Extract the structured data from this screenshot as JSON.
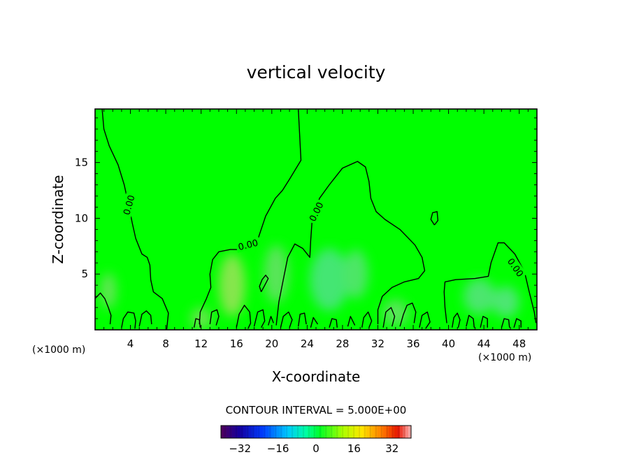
{
  "chart_data": {
    "type": "heatmap",
    "title": "vertical velocity",
    "xlabel": "X-coordinate",
    "ylabel": "Z-coordinate",
    "x_unit_left": "(×1000 m)",
    "x_unit_right": "(×1000 m)",
    "xlim": [
      0,
      50
    ],
    "ylim": [
      0,
      19.8
    ],
    "x_ticks": [
      4,
      8,
      12,
      16,
      20,
      24,
      28,
      32,
      36,
      40,
      44,
      48
    ],
    "y_ticks": [
      5,
      10,
      15
    ],
    "contour_interval_label": "CONTOUR INTERVAL = 5.000E+00",
    "contour_label": "0.00",
    "colorbar": {
      "range": [
        -40,
        40
      ],
      "tick_values": [
        -32,
        -16,
        0,
        16,
        32
      ],
      "tick_labels": [
        "−32",
        "−16",
        "0",
        "16",
        "32"
      ]
    },
    "background_color": "#00ff00",
    "zero_contours": [
      [
        [
          0.8,
          19.8
        ],
        [
          1.0,
          18.0
        ],
        [
          1.6,
          16.5
        ],
        [
          2.6,
          14.8
        ],
        [
          3.3,
          13.0
        ],
        [
          3.8,
          11.2
        ],
        [
          4.2,
          9.6
        ],
        [
          4.6,
          8.2
        ],
        [
          5.3,
          6.8
        ],
        [
          5.9,
          6.5
        ],
        [
          6.2,
          5.8
        ],
        [
          6.3,
          4.5
        ],
        [
          6.6,
          3.4
        ],
        [
          7.6,
          2.8
        ],
        [
          8.3,
          1.5
        ],
        [
          8.1,
          0.0
        ]
      ],
      [
        [
          23.0,
          19.8
        ],
        [
          23.3,
          15.2
        ],
        [
          22.0,
          13.5
        ],
        [
          21.2,
          12.5
        ],
        [
          20.4,
          11.8
        ],
        [
          19.3,
          10.2
        ],
        [
          18.5,
          8.3
        ],
        [
          16.8,
          7.2
        ],
        [
          15.3,
          7.2
        ],
        [
          14.0,
          7.0
        ],
        [
          13.3,
          6.3
        ],
        [
          13.0,
          5.0
        ],
        [
          13.1,
          3.8
        ],
        [
          12.6,
          2.8
        ],
        [
          11.9,
          1.6
        ],
        [
          11.8,
          0.5
        ]
      ],
      [
        [
          20.5,
          0.4
        ],
        [
          20.8,
          2.5
        ],
        [
          21.3,
          4.5
        ],
        [
          21.8,
          6.5
        ],
        [
          22.6,
          7.7
        ],
        [
          23.5,
          7.3
        ],
        [
          24.3,
          6.5
        ],
        [
          24.4,
          8.0
        ],
        [
          24.6,
          10.2
        ],
        [
          25.4,
          11.8
        ],
        [
          26.5,
          13.0
        ],
        [
          28.0,
          14.5
        ],
        [
          29.7,
          15.1
        ],
        [
          30.6,
          14.6
        ],
        [
          31.0,
          13.3
        ],
        [
          31.2,
          11.8
        ],
        [
          31.8,
          10.6
        ],
        [
          32.8,
          9.9
        ],
        [
          34.5,
          9.0
        ],
        [
          36.2,
          7.6
        ],
        [
          37.0,
          6.5
        ],
        [
          37.3,
          5.3
        ],
        [
          36.6,
          4.6
        ],
        [
          35.0,
          4.3
        ],
        [
          33.6,
          3.8
        ],
        [
          32.5,
          3.0
        ],
        [
          32.0,
          1.8
        ],
        [
          32.0,
          0.5
        ]
      ],
      [
        [
          39.8,
          0.6
        ],
        [
          39.6,
          2.0
        ],
        [
          39.5,
          3.4
        ],
        [
          39.6,
          4.3
        ],
        [
          40.8,
          4.5
        ],
        [
          43.0,
          4.6
        ],
        [
          44.5,
          4.8
        ],
        [
          44.8,
          6.0
        ],
        [
          45.6,
          7.8
        ],
        [
          46.3,
          7.8
        ],
        [
          47.5,
          6.8
        ],
        [
          48.6,
          5.2
        ],
        [
          49.1,
          3.5
        ],
        [
          49.7,
          1.6
        ],
        [
          49.9,
          0.6
        ]
      ],
      [
        [
          38.4,
          9.4
        ],
        [
          38.8,
          9.8
        ],
        [
          38.7,
          10.6
        ],
        [
          38.2,
          10.5
        ],
        [
          38.0,
          9.9
        ],
        [
          38.4,
          9.4
        ]
      ],
      [
        [
          18.8,
          3.4
        ],
        [
          19.2,
          4.0
        ],
        [
          19.6,
          4.6
        ],
        [
          19.3,
          4.9
        ],
        [
          18.9,
          4.5
        ],
        [
          18.6,
          3.9
        ],
        [
          18.8,
          3.4
        ]
      ],
      [
        [
          0.0,
          2.8
        ],
        [
          0.6,
          3.3
        ],
        [
          1.1,
          2.8
        ],
        [
          1.5,
          2.0
        ],
        [
          1.8,
          1.3
        ],
        [
          1.7,
          0.5
        ]
      ],
      [
        [
          3.0,
          0.2
        ],
        [
          3.2,
          1.0
        ],
        [
          3.7,
          1.6
        ],
        [
          4.4,
          1.5
        ],
        [
          4.6,
          0.8
        ],
        [
          4.5,
          0.1
        ]
      ],
      [
        [
          5.0,
          0.3
        ],
        [
          5.3,
          1.4
        ],
        [
          5.8,
          1.7
        ],
        [
          6.3,
          1.3
        ],
        [
          6.4,
          0.5
        ]
      ],
      [
        [
          11.2,
          0.2
        ],
        [
          11.4,
          1.0
        ],
        [
          11.8,
          0.9
        ],
        [
          11.9,
          0.2
        ]
      ],
      [
        [
          13.0,
          0.5
        ],
        [
          13.2,
          1.6
        ],
        [
          13.8,
          1.8
        ],
        [
          14.0,
          1.2
        ],
        [
          13.7,
          0.4
        ]
      ],
      [
        [
          16.0,
          0.2
        ],
        [
          16.3,
          1.4
        ],
        [
          16.9,
          2.2
        ],
        [
          17.5,
          1.6
        ],
        [
          17.6,
          0.6
        ],
        [
          17.3,
          0.1
        ]
      ],
      [
        [
          18.0,
          0.3
        ],
        [
          18.4,
          1.6
        ],
        [
          19.0,
          1.8
        ],
        [
          19.2,
          0.8
        ],
        [
          18.8,
          0.2
        ]
      ],
      [
        [
          19.6,
          0.4
        ],
        [
          19.9,
          1.2
        ],
        [
          20.2,
          0.6
        ]
      ],
      [
        [
          21.0,
          0.2
        ],
        [
          21.3,
          1.2
        ],
        [
          21.9,
          1.6
        ],
        [
          22.3,
          0.9
        ],
        [
          22.0,
          0.2
        ]
      ],
      [
        [
          23.0,
          0.3
        ],
        [
          23.2,
          1.4
        ],
        [
          23.7,
          1.5
        ],
        [
          23.9,
          0.5
        ]
      ],
      [
        [
          24.4,
          0.2
        ],
        [
          24.7,
          1.1
        ],
        [
          25.2,
          0.5
        ]
      ],
      [
        [
          26.5,
          0.2
        ],
        [
          26.8,
          1.0
        ],
        [
          27.3,
          0.9
        ],
        [
          27.4,
          0.2
        ]
      ],
      [
        [
          28.6,
          0.3
        ],
        [
          28.9,
          1.2
        ],
        [
          29.4,
          0.4
        ]
      ],
      [
        [
          30.2,
          0.2
        ],
        [
          30.4,
          1.1
        ],
        [
          30.9,
          1.6
        ],
        [
          31.3,
          0.8
        ],
        [
          31.0,
          0.2
        ]
      ],
      [
        [
          32.6,
          0.2
        ],
        [
          32.9,
          1.6
        ],
        [
          33.5,
          2.0
        ],
        [
          33.9,
          1.2
        ],
        [
          33.6,
          0.3
        ]
      ],
      [
        [
          34.5,
          0.3
        ],
        [
          34.9,
          1.4
        ],
        [
          35.3,
          2.2
        ],
        [
          35.9,
          2.4
        ],
        [
          36.3,
          1.6
        ],
        [
          36.1,
          0.6
        ]
      ],
      [
        [
          36.7,
          0.2
        ],
        [
          37.0,
          1.3
        ],
        [
          37.6,
          1.6
        ],
        [
          37.9,
          0.7
        ],
        [
          37.4,
          0.1
        ]
      ],
      [
        [
          40.4,
          0.2
        ],
        [
          40.6,
          1.1
        ],
        [
          41.0,
          1.5
        ],
        [
          41.3,
          0.9
        ],
        [
          41.1,
          0.2
        ]
      ],
      [
        [
          42.0,
          0.3
        ],
        [
          42.3,
          1.3
        ],
        [
          42.8,
          1.0
        ],
        [
          42.9,
          0.2
        ]
      ],
      [
        [
          43.6,
          0.2
        ],
        [
          43.9,
          1.2
        ],
        [
          44.4,
          1.0
        ],
        [
          44.4,
          0.2
        ]
      ],
      [
        [
          46.0,
          0.2
        ],
        [
          46.3,
          1.0
        ],
        [
          46.8,
          0.9
        ],
        [
          46.9,
          0.2
        ]
      ],
      [
        [
          47.4,
          0.2
        ],
        [
          47.7,
          1.0
        ],
        [
          48.2,
          0.8
        ],
        [
          48.2,
          0.2
        ]
      ]
    ],
    "label_positions": [
      {
        "x": 3.8,
        "y": 11.2,
        "angle": -74
      },
      {
        "x": 17.3,
        "y": 7.65,
        "angle": -14
      },
      {
        "x": 25.0,
        "y": 10.6,
        "angle": -64
      },
      {
        "x": 47.6,
        "y": 5.6,
        "angle": 55
      }
    ]
  }
}
